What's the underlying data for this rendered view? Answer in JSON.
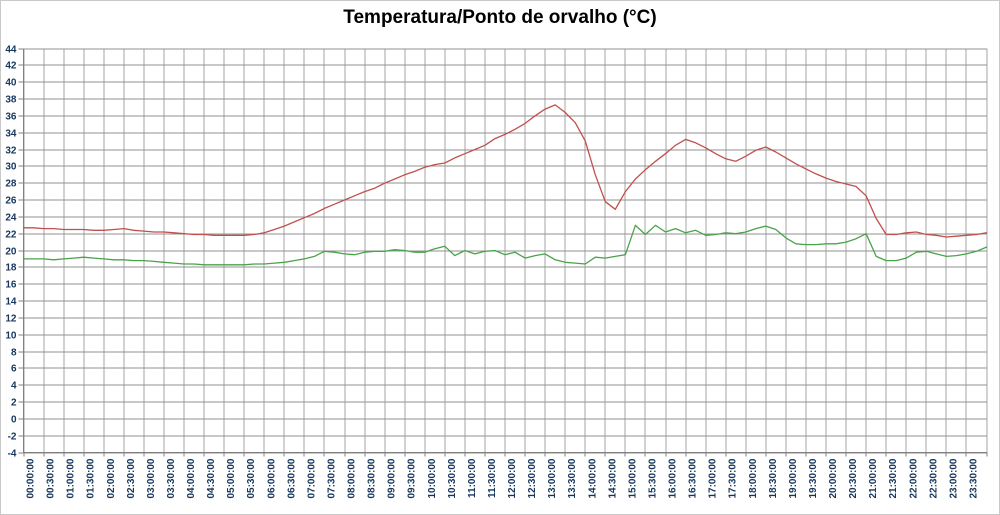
{
  "chart_data": {
    "type": "line",
    "title": "Temperatura/Ponto de orvalho (°C)",
    "xlabel": "",
    "ylabel": "",
    "ylim": [
      -4,
      44
    ],
    "y_tick_step": 2,
    "y_ticks": [
      44,
      42,
      40,
      38,
      36,
      34,
      32,
      30,
      28,
      26,
      24,
      22,
      20,
      18,
      16,
      14,
      12,
      10,
      8,
      6,
      4,
      2,
      0,
      -2,
      -4
    ],
    "x_tick_labels": [
      "00:00:00",
      "00:30:00",
      "01:00:00",
      "01:30:00",
      "02:00:00",
      "02:30:00",
      "03:00:00",
      "03:30:00",
      "04:00:00",
      "04:30:00",
      "05:00:00",
      "05:30:00",
      "06:00:00",
      "06:30:00",
      "07:00:00",
      "07:30:00",
      "08:00:00",
      "08:30:00",
      "09:00:00",
      "09:30:00",
      "10:00:00",
      "10:30:00",
      "11:00:00",
      "11:30:00",
      "12:00:00",
      "12:30:00",
      "13:00:00",
      "13:30:00",
      "14:00:00",
      "14:30:00",
      "15:00:00",
      "15:30:00",
      "16:00:00",
      "16:30:00",
      "17:00:00",
      "17:30:00",
      "18:00:00",
      "18:30:00",
      "19:00:00",
      "19:30:00",
      "20:00:00",
      "20:30:00",
      "21:00:00",
      "21:30:00",
      "22:00:00",
      "22:30:00",
      "23:00:00",
      "23:30:00"
    ],
    "x_start_minutes": 0,
    "x_step_minutes": 15,
    "x_total_minutes": 1440,
    "grid": true,
    "legend_position": "none",
    "series": [
      {
        "name": "Temperatura",
        "color": "#c0504d",
        "values": [
          22.7,
          22.7,
          22.6,
          22.6,
          22.5,
          22.5,
          22.5,
          22.4,
          22.4,
          22.5,
          22.6,
          22.4,
          22.3,
          22.2,
          22.2,
          22.1,
          22.0,
          21.9,
          21.9,
          21.8,
          21.8,
          21.8,
          21.8,
          21.9,
          22.1,
          22.5,
          22.9,
          23.4,
          23.9,
          24.4,
          25.0,
          25.5,
          26.0,
          26.5,
          27.0,
          27.4,
          28.0,
          28.5,
          29.0,
          29.4,
          29.9,
          30.2,
          30.4,
          31.0,
          31.5,
          32.0,
          32.5,
          33.3,
          33.8,
          34.4,
          35.1,
          36.0,
          36.8,
          37.3,
          36.4,
          35.2,
          33.0,
          29.0,
          25.8,
          24.9,
          27.0,
          28.5,
          29.6,
          30.6,
          31.5,
          32.5,
          33.2,
          32.8,
          32.2,
          31.5,
          30.9,
          30.6,
          31.2,
          31.9,
          32.3,
          31.7,
          31.0,
          30.3,
          29.7,
          29.1,
          28.6,
          28.2,
          27.9,
          27.6,
          26.5,
          23.8,
          21.9,
          21.9,
          22.1,
          22.2,
          21.9,
          21.8,
          21.6,
          21.7,
          21.8,
          21.9,
          22.1
        ]
      },
      {
        "name": "Ponto de orvalho",
        "color": "#4aa34a",
        "values": [
          19.0,
          19.0,
          19.0,
          18.9,
          19.0,
          19.1,
          19.2,
          19.1,
          19.0,
          18.9,
          18.9,
          18.8,
          18.8,
          18.7,
          18.6,
          18.5,
          18.4,
          18.4,
          18.3,
          18.3,
          18.3,
          18.3,
          18.3,
          18.4,
          18.4,
          18.5,
          18.6,
          18.8,
          19.0,
          19.3,
          19.9,
          19.8,
          19.6,
          19.5,
          19.8,
          19.9,
          19.9,
          20.1,
          20.0,
          19.8,
          19.8,
          20.2,
          20.5,
          19.4,
          20.0,
          19.6,
          19.9,
          20.0,
          19.5,
          19.8,
          19.1,
          19.4,
          19.6,
          18.9,
          18.6,
          18.5,
          18.4,
          19.2,
          19.1,
          19.3,
          19.5,
          23.0,
          21.9,
          23.0,
          22.2,
          22.6,
          22.1,
          22.4,
          21.8,
          21.9,
          22.1,
          22.0,
          22.2,
          22.6,
          22.9,
          22.5,
          21.5,
          20.8,
          20.7,
          20.7,
          20.8,
          20.8,
          21.0,
          21.4,
          22.0,
          19.3,
          18.8,
          18.8,
          19.1,
          19.8,
          19.9,
          19.6,
          19.3,
          19.4,
          19.6,
          19.9,
          20.4
        ]
      }
    ],
    "colors": {
      "grid_vertical": "#a6a6a6",
      "grid_horizontal": "#919191",
      "axis_line": "#808080",
      "tick_label": "#16365c",
      "title": "#000000",
      "background": "#ffffff"
    }
  }
}
